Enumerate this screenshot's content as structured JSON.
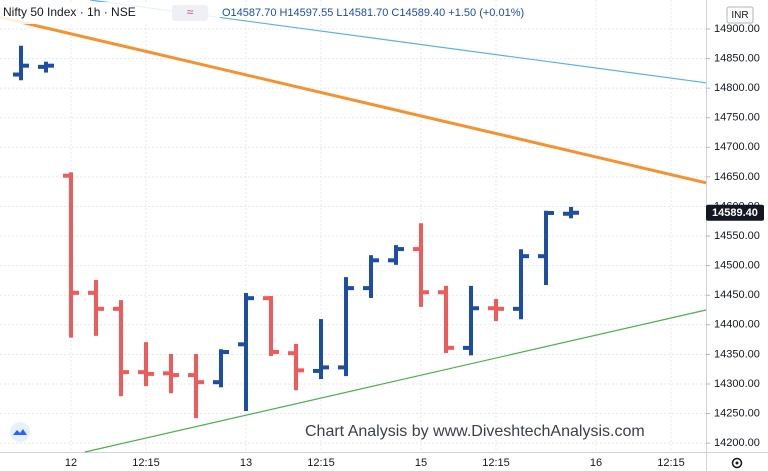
{
  "chart_data": {
    "type": "ohlc",
    "symbol": "Nifty 50 Index · 1h · NSE",
    "ohlc_text": "O14587.70 H14597.55 L14581.70 C14589.40 +1.50 (+0.01%)",
    "currency": "INR",
    "watermark": "Chart Analysis by www.DiveshtechAnalysis.com",
    "categories": [
      null,
      null,
      "12",
      null,
      null,
      "12:15",
      null,
      null,
      null,
      "13",
      null,
      null,
      "12:15",
      null,
      null,
      null,
      "15",
      null,
      null,
      "12:15",
      null,
      null,
      null,
      "16",
      null,
      null,
      "12:15"
    ],
    "open": [
      14823,
      14836,
      14652,
      14454,
      14427,
      14320,
      14318,
      14315,
      14303,
      14367,
      14445,
      14352,
      14322,
      14328,
      14462,
      14509,
      14528,
      14455,
      14361,
      14428,
      14427,
      14516,
      14587.7,
      null,
      null,
      null,
      null
    ],
    "high": [
      14870,
      14843,
      14656,
      14474,
      14440,
      14369,
      14349,
      14349,
      14357,
      14452,
      14447,
      14366,
      14408,
      14479,
      14516,
      14533,
      14570,
      14464,
      14464,
      14442,
      14526,
      14591,
      14597.55,
      null,
      null,
      null,
      null
    ],
    "low": [
      14815,
      14828,
      14380,
      14383,
      14281,
      14298,
      14286,
      14244,
      14296,
      14256,
      14349,
      14291,
      14310,
      14315,
      14447,
      14503,
      14432,
      14354,
      14350,
      14408,
      14411,
      14469,
      14581.7,
      null,
      null,
      null,
      null
    ],
    "close": [
      14838,
      14838,
      14454,
      14427,
      14320,
      14317,
      14315,
      14303,
      14354,
      14445,
      14354,
      14323,
      14328,
      14462,
      14509,
      14528,
      14455,
      14361,
      14428,
      14427,
      14516,
      14589,
      14589.4,
      null,
      null,
      null,
      null
    ],
    "last_price_label": "14589.40",
    "up_color": "#1c4fa3",
    "down_color": "#ef5a5a",
    "ylim": [
      14185,
      14949
    ],
    "yticks": [
      {
        "value": 14200,
        "label": "14200.00"
      },
      {
        "value": 14250,
        "label": "14250.00"
      },
      {
        "value": 14300,
        "label": "14300.00"
      },
      {
        "value": 14350,
        "label": "14350.00"
      },
      {
        "value": 14400,
        "label": "14400.00"
      },
      {
        "value": 14450,
        "label": "14450.00"
      },
      {
        "value": 14500,
        "label": "14500.00"
      },
      {
        "value": 14550,
        "label": "14550.00"
      },
      {
        "value": 14600,
        "label": "14600.00"
      },
      {
        "value": 14650,
        "label": "14650.00"
      },
      {
        "value": 14700,
        "label": "14700.00"
      },
      {
        "value": 14750,
        "label": "14750.00"
      },
      {
        "value": 14800,
        "label": "14800.00"
      },
      {
        "value": 14850,
        "label": "14850.00"
      },
      {
        "value": 14900,
        "label": "14900.00"
      }
    ],
    "grid": true,
    "trendlines": [
      {
        "color": "#f5922f",
        "from": [
          -0.84,
          14920
        ],
        "to": [
          27.4,
          14640
        ]
      },
      {
        "color": "#5bb3e0",
        "from": [
          2.76,
          14949
        ],
        "to": [
          27.4,
          14809
        ]
      },
      {
        "color": "#4caf50",
        "from": [
          2.56,
          14185
        ],
        "to": [
          27.4,
          14425
        ]
      }
    ]
  }
}
